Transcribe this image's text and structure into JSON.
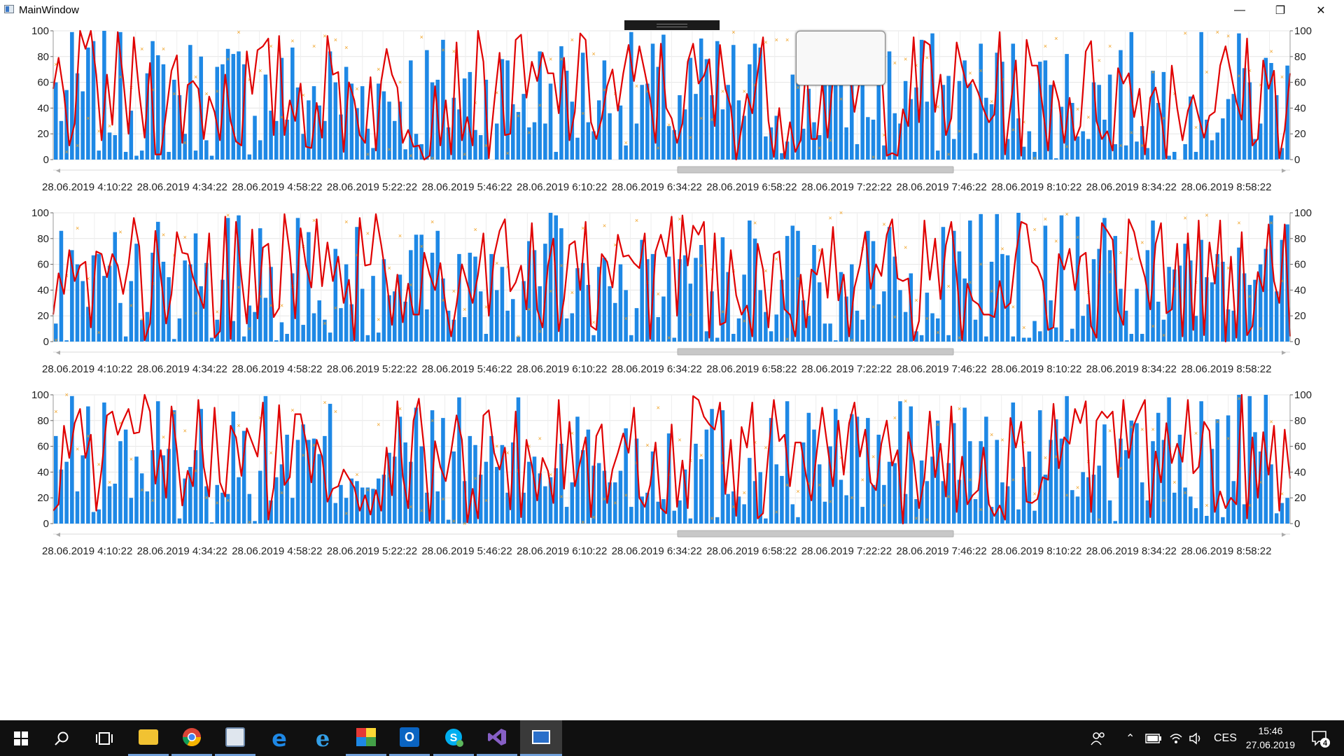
{
  "window": {
    "title": "MainWindow"
  },
  "colors": {
    "bar": "#1e88e5",
    "line": "#e00000",
    "scatter": "#f0a020",
    "scrollbar": "#c8c8c8"
  },
  "axes": {
    "left_ticks": [
      "100",
      "80",
      "60",
      "40",
      "20",
      "0"
    ],
    "right_ticks": [
      "100",
      "80",
      "60",
      "40",
      "20",
      "0"
    ]
  },
  "x_labels": [
    "28.06.2019 4:10:22",
    "28.06.2019 4:34:22",
    "28.06.2019 4:58:22",
    "28.06.2019 5:22:22",
    "28.06.2019 5:46:22",
    "28.06.2019 6:10:22",
    "28.06.2019 6:34:22",
    "28.06.2019 6:58:22",
    "28.06.2019 7:22:22",
    "28.06.2019 7:46:22",
    "28.06.2019 8:10:22",
    "28.06.2019 8:34:22",
    "28.06.2019 8:58:22"
  ],
  "chart_data": [
    {
      "type": "bar",
      "ylim": [
        0,
        100
      ],
      "yticks": [
        0,
        20,
        40,
        60,
        80,
        100
      ],
      "series": [
        {
          "type": "bar"
        },
        {
          "type": "line"
        },
        {
          "type": "scatter"
        }
      ],
      "x_tick_labels": "x_labels"
    },
    {
      "type": "bar",
      "ylim": [
        0,
        100
      ],
      "yticks": [
        0,
        20,
        40,
        60,
        80,
        100
      ],
      "series": [
        {
          "type": "bar"
        },
        {
          "type": "line"
        },
        {
          "type": "scatter"
        }
      ],
      "x_tick_labels": "x_labels"
    },
    {
      "type": "bar",
      "ylim": [
        0,
        100
      ],
      "yticks": [
        0,
        20,
        40,
        60,
        80,
        100
      ],
      "series": [
        {
          "type": "bar"
        },
        {
          "type": "line"
        },
        {
          "type": "scatter"
        }
      ],
      "x_tick_labels": "x_labels"
    }
  ],
  "taskbar": {
    "icons": [
      "windows-start-icon",
      "search-icon",
      "task-view-icon",
      "file-explorer-icon",
      "chrome-icon",
      "store-icon",
      "edge-icon",
      "internet-explorer-icon",
      "photo-app-icon",
      "outlook-icon",
      "skype-icon",
      "visual-studio-icon",
      "mainwindow-app-icon"
    ],
    "language": "CES",
    "time": "15:46",
    "date": "27.06.2019",
    "notifications": "4"
  }
}
